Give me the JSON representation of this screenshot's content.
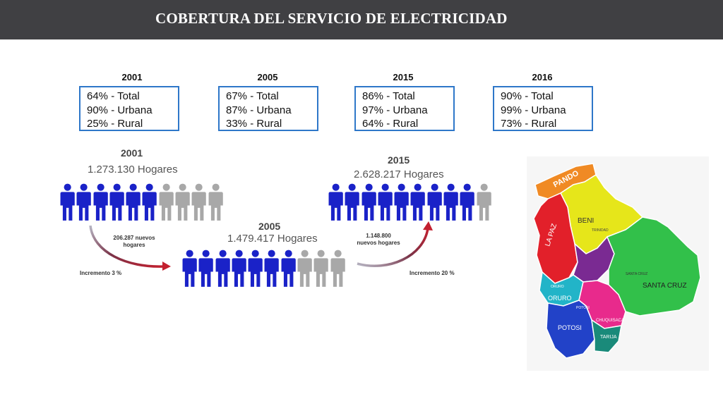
{
  "header": {
    "title": "COBERTURA DEL SERVICIO DE ELECTRICIDAD"
  },
  "colors": {
    "header_bg": "#404043",
    "box_border": "#2e77c9",
    "person_on": "#1a22c8",
    "person_off": "#a8a8a8"
  },
  "years": [
    {
      "year": "2001",
      "total": "64% - Total",
      "urbana": "90% - Urbana",
      "rural": "25% - Rural"
    },
    {
      "year": "2005",
      "total": "67% - Total",
      "urbana": "87% - Urbana",
      "rural": "33% - Rural"
    },
    {
      "year": "2015",
      "total": "86% - Total",
      "urbana": "97% - Urbana",
      "rural": "64% - Rural"
    },
    {
      "year": "2016",
      "total": "90% - Total",
      "urbana": "99% - Urbana",
      "rural": "73% - Rural"
    }
  ],
  "infographic": {
    "g2001": {
      "year": "2001",
      "hogares": "1.273.130 Hogares",
      "filled": 6,
      "total_icons": 10
    },
    "g2005": {
      "year": "2005",
      "hogares": "1.479.417 Hogares",
      "filled": 7,
      "total_icons": 10
    },
    "g2015": {
      "year": "2015",
      "hogares": "2.628.217 Hogares",
      "filled": 9,
      "total_icons": 10
    },
    "arrow1": {
      "line1": "206.287 nuevos",
      "line2": "hogares",
      "increment": "Incremento 3 %"
    },
    "arrow2": {
      "line1": "1.148.800",
      "line2": "nuevos hogares",
      "increment": "Incremento 20 %"
    }
  },
  "map": {
    "departments": {
      "pando": "PANDO",
      "beni": "BENI",
      "trinidad": "TRINIDAD",
      "lapaz": "LA PAZ",
      "santacruz_city": "SANTA CRUZ",
      "santacruz": "SANTA CRUZ",
      "oruro_city": "ORURO",
      "oruro": "ORURO",
      "potosi_city": "POTOSI",
      "potosi": "POTOSI",
      "chuquisaca": "CHUQUISACA",
      "tarija": "TARIJA"
    }
  }
}
